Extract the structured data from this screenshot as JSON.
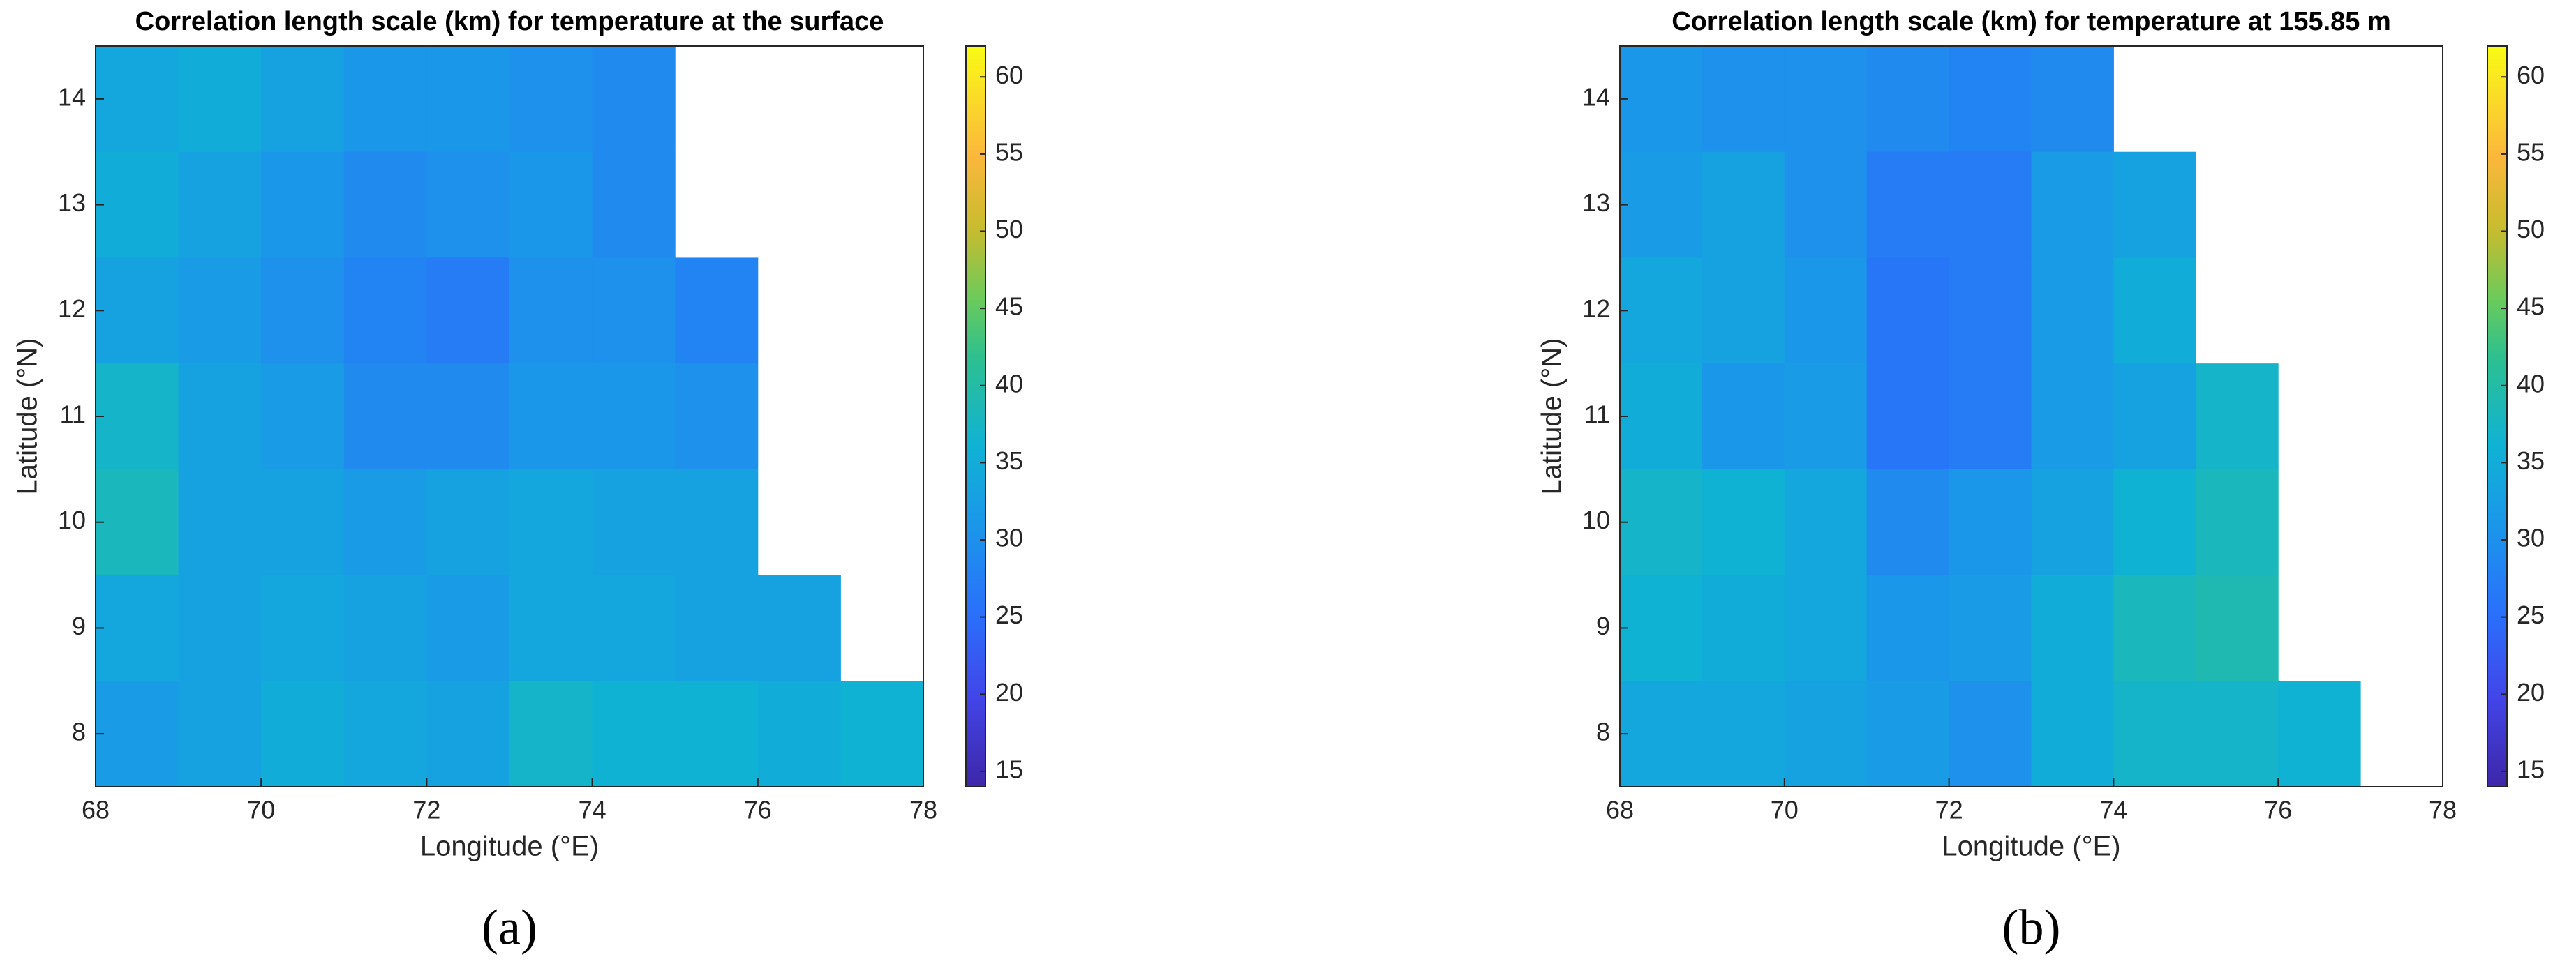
{
  "chart_data": [
    {
      "type": "heatmap",
      "title": "Correlation length scale (km) for temperature at the surface",
      "x_label": "Longitude (°E)",
      "y_label": "Latitude (°N)",
      "panel_label": "(a)",
      "colormap": "parula",
      "x": [
        68.5,
        69.5,
        70.5,
        71.5,
        72.5,
        73.5,
        74.5,
        75.5,
        76.5,
        77.5
      ],
      "y": [
        14,
        13,
        12,
        11,
        10,
        9,
        8
      ],
      "values": [
        [
          34,
          35,
          33,
          31,
          31,
          30,
          29,
          null,
          null,
          null
        ],
        [
          35,
          33,
          31,
          29,
          30,
          31,
          29,
          null,
          null,
          null
        ],
        [
          33,
          32,
          30,
          28,
          27,
          30,
          30,
          28,
          null,
          null
        ],
        [
          37,
          33,
          32,
          29,
          29,
          31,
          31,
          30,
          null,
          null
        ],
        [
          38,
          33,
          33,
          32,
          33,
          34,
          33,
          33,
          null,
          null
        ],
        [
          34,
          33,
          34,
          33,
          32,
          34,
          34,
          33,
          33,
          null
        ],
        [
          32,
          33,
          35,
          34,
          33,
          37,
          36,
          36,
          35,
          36
        ]
      ],
      "xlim": [
        68,
        78
      ],
      "ylim": [
        7.5,
        14.5
      ],
      "xticks": [
        68,
        70,
        72,
        74,
        76,
        78
      ],
      "yticks": [
        8,
        9,
        10,
        11,
        12,
        13,
        14
      ],
      "clim": [
        14,
        62
      ],
      "colorbar_ticks": [
        15,
        20,
        25,
        30,
        35,
        40,
        45,
        50,
        55,
        60
      ]
    },
    {
      "type": "heatmap",
      "title": "Correlation length scale (km) for temperature at 155.85 m",
      "x_label": "Longitude (°E)",
      "y_label": "Latitude (°N)",
      "panel_label": "(b)",
      "colormap": "parula",
      "x": [
        68.5,
        69.5,
        70.5,
        71.5,
        72.5,
        73.5,
        74.5,
        75.5,
        76.5,
        77.5
      ],
      "y": [
        14,
        13,
        12,
        11,
        10,
        9,
        8
      ],
      "values": [
        [
          31,
          30,
          30,
          29,
          28,
          29,
          null,
          null,
          null,
          null
        ],
        [
          32,
          33,
          30,
          27,
          27,
          32,
          33,
          null,
          null,
          null
        ],
        [
          34,
          33,
          31,
          26,
          27,
          32,
          35,
          null,
          null,
          null
        ],
        [
          35,
          31,
          32,
          26,
          27,
          32,
          33,
          37,
          null,
          null
        ],
        [
          37,
          36,
          34,
          29,
          31,
          33,
          36,
          38,
          null,
          null
        ],
        [
          36,
          35,
          34,
          31,
          32,
          35,
          38,
          39,
          null,
          null
        ],
        [
          34,
          34,
          33,
          32,
          30,
          35,
          37,
          37,
          36,
          null
        ]
      ],
      "xlim": [
        68,
        78
      ],
      "ylim": [
        7.5,
        14.5
      ],
      "xticks": [
        68,
        70,
        72,
        74,
        76,
        78
      ],
      "yticks": [
        8,
        9,
        10,
        11,
        12,
        13,
        14
      ],
      "clim": [
        14,
        62
      ],
      "colorbar_ticks": [
        15,
        20,
        25,
        30,
        35,
        40,
        45,
        50,
        55,
        60
      ]
    }
  ]
}
